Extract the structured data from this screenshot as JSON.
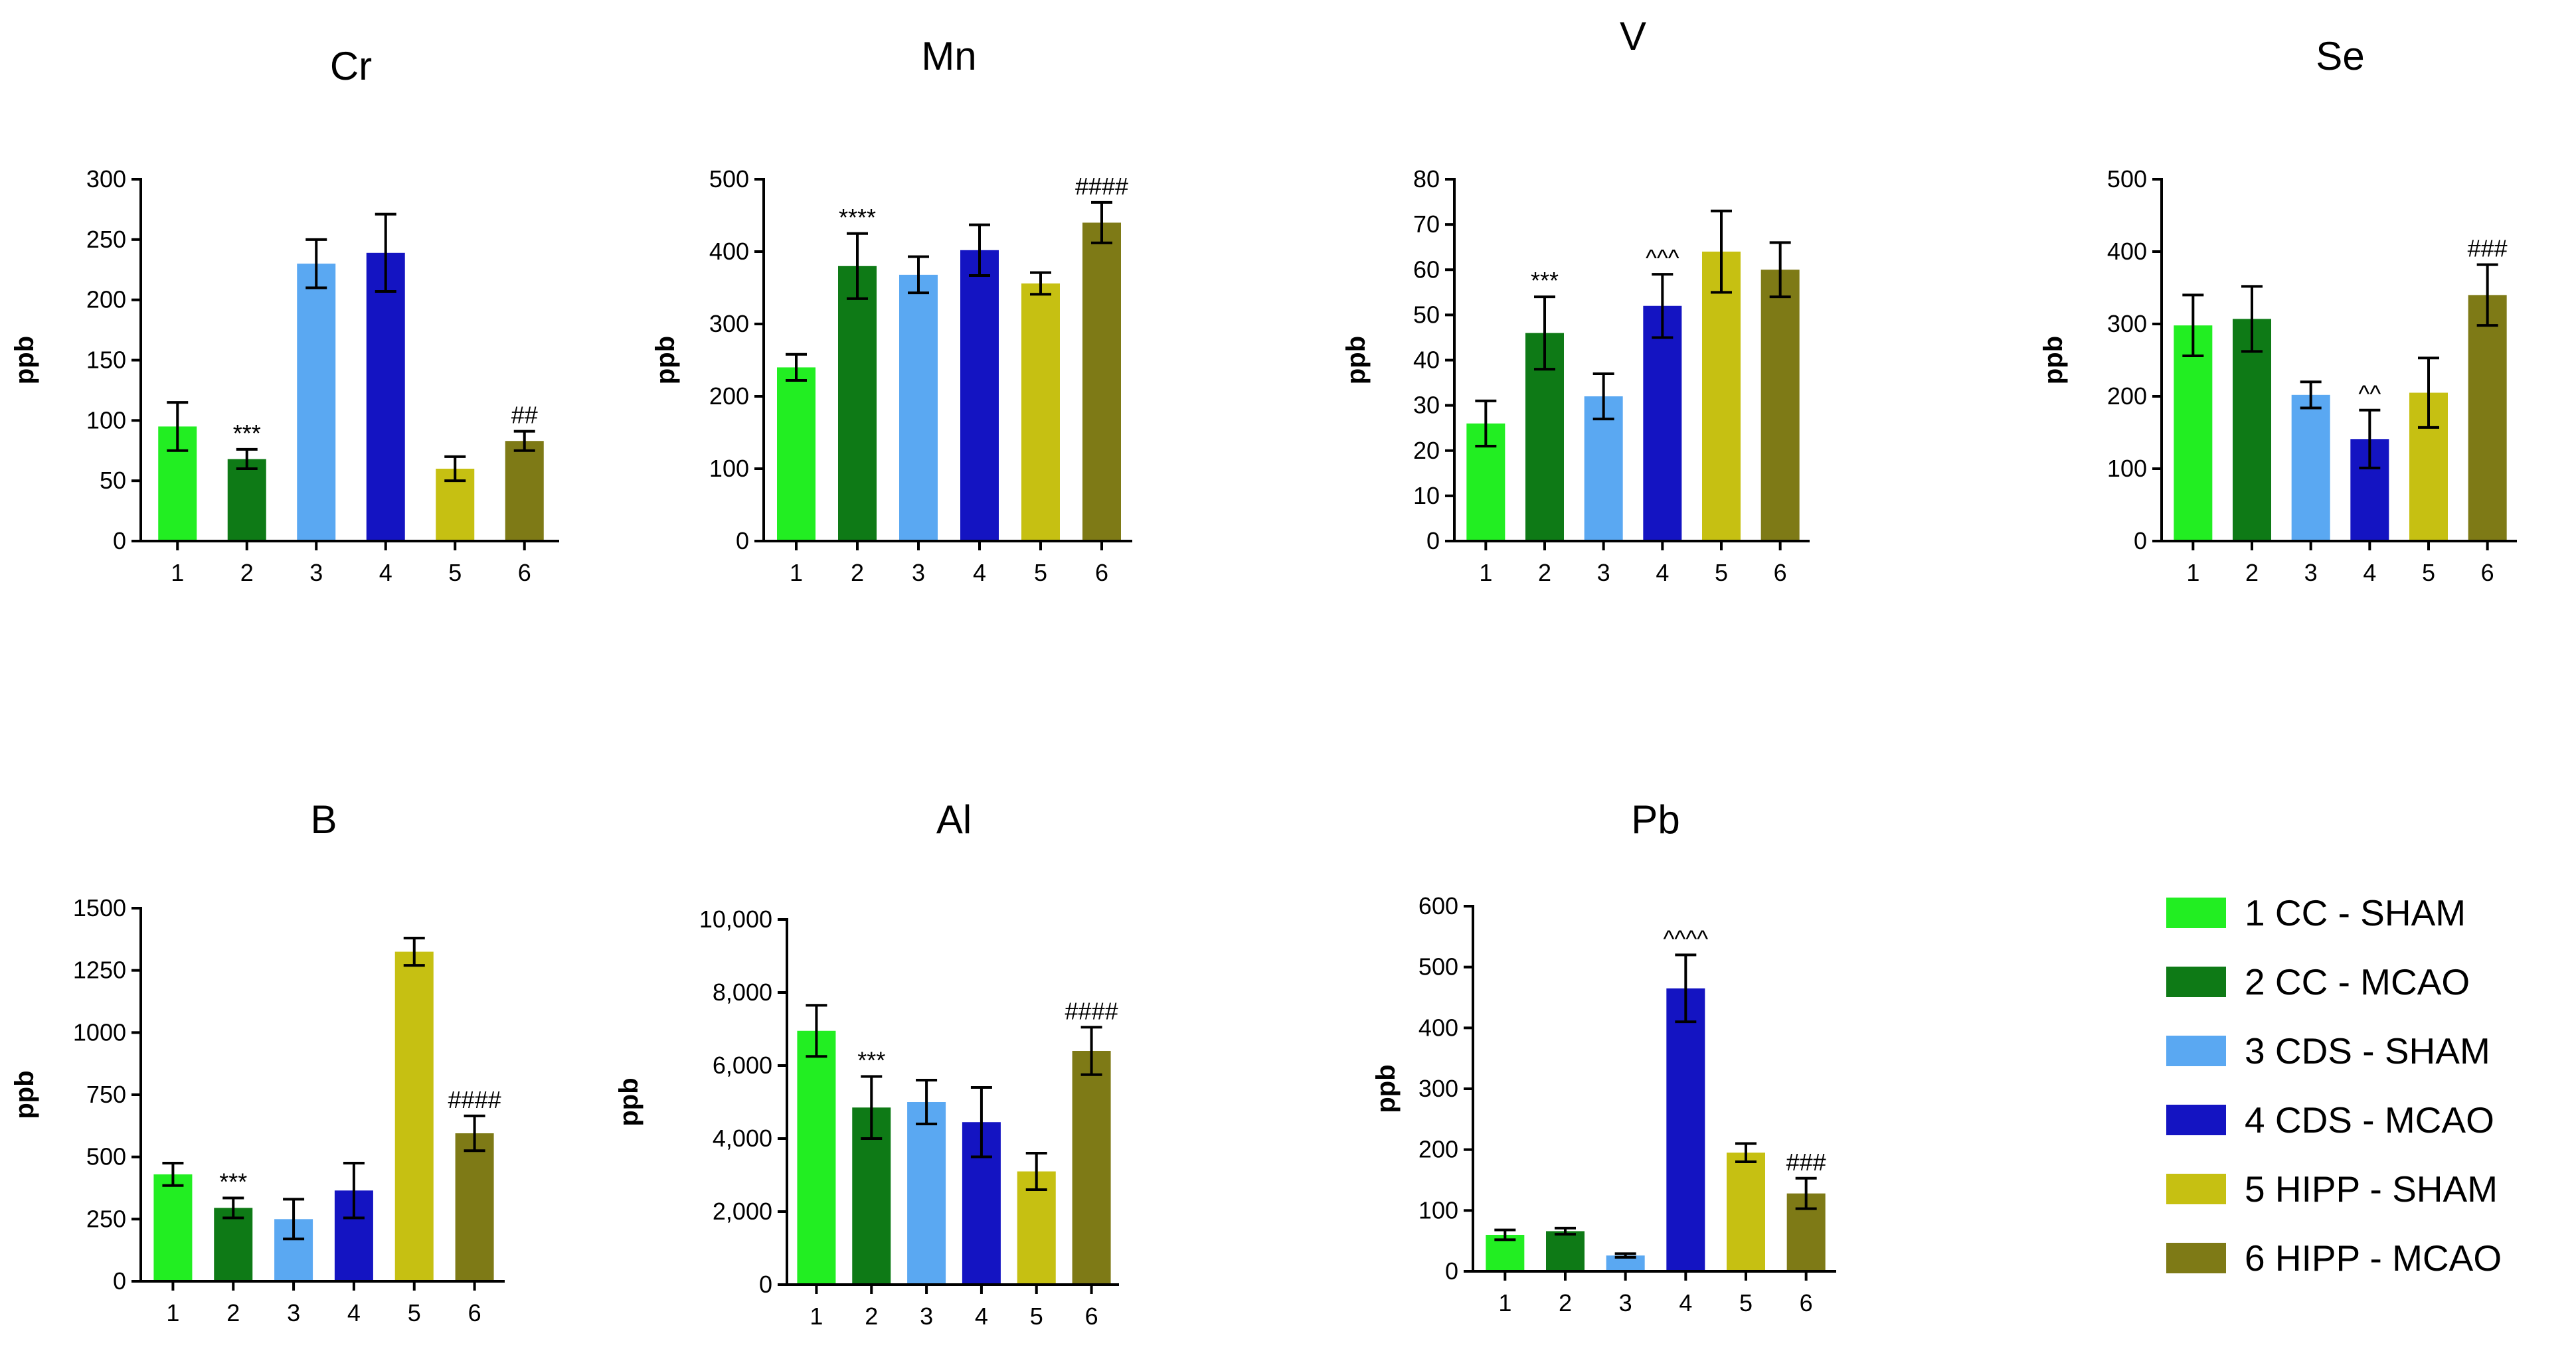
{
  "legend": [
    {
      "label": "1 CC - SHAM",
      "color": "#22ee22"
    },
    {
      "label": "2 CC - MCAO",
      "color": "#0e7a16"
    },
    {
      "label": "3 CDS - SHAM",
      "color": "#5aa8f2"
    },
    {
      "label": "4 CDS - MCAO",
      "color": "#1414c2"
    },
    {
      "label": "5 HIPP - SHAM",
      "color": "#c6c012"
    },
    {
      "label": "6 HIPP - MCAO",
      "color": "#7e7a16"
    }
  ],
  "chart_data": [
    {
      "type": "bar",
      "title": "Cr",
      "ylabel": "ppb",
      "categories": [
        "1",
        "2",
        "3",
        "4",
        "5",
        "6"
      ],
      "values": [
        95,
        68,
        230,
        239,
        60,
        83
      ],
      "errors": [
        20,
        8,
        20,
        32,
        10,
        8
      ],
      "ylim": [
        0,
        300
      ],
      "yticks": [
        "0",
        "50",
        "100",
        "150",
        "200",
        "250",
        "300"
      ],
      "annotations": [
        "",
        "***",
        "",
        "",
        "",
        "##"
      ]
    },
    {
      "type": "bar",
      "title": "Mn",
      "ylabel": "ppb",
      "categories": [
        "1",
        "2",
        "3",
        "4",
        "5",
        "6"
      ],
      "values": [
        240,
        380,
        368,
        402,
        356,
        440
      ],
      "errors": [
        18,
        45,
        25,
        35,
        15,
        28
      ],
      "ylim": [
        0,
        500
      ],
      "yticks": [
        "0",
        "100",
        "200",
        "300",
        "400",
        "500"
      ],
      "annotations": [
        "",
        "****",
        "",
        "",
        "",
        "####"
      ]
    },
    {
      "type": "bar",
      "title": "V",
      "ylabel": "ppb",
      "categories": [
        "1",
        "2",
        "3",
        "4",
        "5",
        "6"
      ],
      "values": [
        26,
        46,
        32,
        52,
        64,
        60
      ],
      "errors": [
        5,
        8,
        5,
        7,
        9,
        6
      ],
      "ylim": [
        0,
        80
      ],
      "yticks": [
        "0",
        "10",
        "20",
        "30",
        "40",
        "50",
        "60",
        "70",
        "80"
      ],
      "annotations": [
        "",
        "***",
        "",
        "^^^",
        "",
        ""
      ]
    },
    {
      "type": "bar",
      "title": "Se",
      "ylabel": "ppb",
      "categories": [
        "1",
        "2",
        "3",
        "4",
        "5",
        "6"
      ],
      "values": [
        298,
        307,
        202,
        141,
        205,
        340
      ],
      "errors": [
        42,
        45,
        18,
        40,
        48,
        42
      ],
      "ylim": [
        0,
        500
      ],
      "yticks": [
        "0",
        "100",
        "200",
        "300",
        "400",
        "500"
      ],
      "annotations": [
        "",
        "",
        "",
        "^^",
        "",
        "###"
      ]
    },
    {
      "type": "bar",
      "title": "B",
      "ylabel": "ppb",
      "categories": [
        "1",
        "2",
        "3",
        "4",
        "5",
        "6"
      ],
      "values": [
        430,
        295,
        250,
        365,
        1325,
        595
      ],
      "errors": [
        45,
        40,
        80,
        110,
        55,
        70
      ],
      "ylim": [
        0,
        1500
      ],
      "yticks": [
        "0",
        "250",
        "500",
        "750",
        "1000",
        "1250",
        "1500"
      ],
      "annotations": [
        "",
        "***",
        "",
        "",
        "",
        "####"
      ]
    },
    {
      "type": "bar",
      "title": "Al",
      "ylabel": "ppb",
      "categories": [
        "1",
        "2",
        "3",
        "4",
        "5",
        "6"
      ],
      "values": [
        6950,
        4850,
        5000,
        4450,
        3100,
        6400
      ],
      "errors": [
        700,
        850,
        600,
        950,
        500,
        650
      ],
      "ylim": [
        0,
        10000
      ],
      "yticks": [
        "0",
        "2,000",
        "4,000",
        "6,000",
        "8,000",
        "10,000"
      ],
      "annotations": [
        "",
        "***",
        "",
        "",
        "",
        "####"
      ]
    },
    {
      "type": "bar",
      "title": "Pb",
      "ylabel": "ppb",
      "categories": [
        "1",
        "2",
        "3",
        "4",
        "5",
        "6"
      ],
      "values": [
        60,
        66,
        26,
        465,
        195,
        128
      ],
      "errors": [
        8,
        5,
        3,
        55,
        15,
        25
      ],
      "ylim": [
        0,
        600
      ],
      "yticks": [
        "0",
        "100",
        "200",
        "300",
        "400",
        "500",
        "600"
      ],
      "annotations": [
        "",
        "",
        "",
        "^^^^",
        "",
        "###"
      ]
    }
  ]
}
